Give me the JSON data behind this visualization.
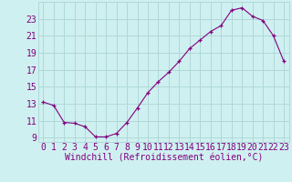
{
  "x": [
    0,
    1,
    2,
    3,
    4,
    5,
    6,
    7,
    8,
    9,
    10,
    11,
    12,
    13,
    14,
    15,
    16,
    17,
    18,
    19,
    20,
    21,
    22,
    23
  ],
  "y": [
    13.2,
    12.8,
    10.8,
    10.7,
    10.3,
    9.1,
    9.1,
    9.5,
    10.8,
    12.5,
    14.3,
    15.6,
    16.7,
    18.0,
    19.5,
    20.5,
    21.5,
    22.2,
    24.0,
    24.3,
    23.3,
    22.8,
    21.0,
    18.0
  ],
  "line_color": "#800080",
  "marker": "+",
  "bg_color": "#cff0f0",
  "grid_color": "#b0d8d8",
  "xlabel": "Windchill (Refroidissement éolien,°C)",
  "ylabel_ticks": [
    9,
    11,
    13,
    15,
    17,
    19,
    21,
    23
  ],
  "xtick_labels": [
    "0",
    "1",
    "2",
    "3",
    "4",
    "5",
    "6",
    "7",
    "8",
    "9",
    "10",
    "11",
    "12",
    "13",
    "14",
    "15",
    "16",
    "17",
    "18",
    "19",
    "20",
    "21",
    "22",
    "23"
  ],
  "ylim": [
    8.5,
    25.0
  ],
  "xlim": [
    -0.5,
    23.5
  ],
  "tick_fontsize": 7,
  "xlabel_fontsize": 7
}
